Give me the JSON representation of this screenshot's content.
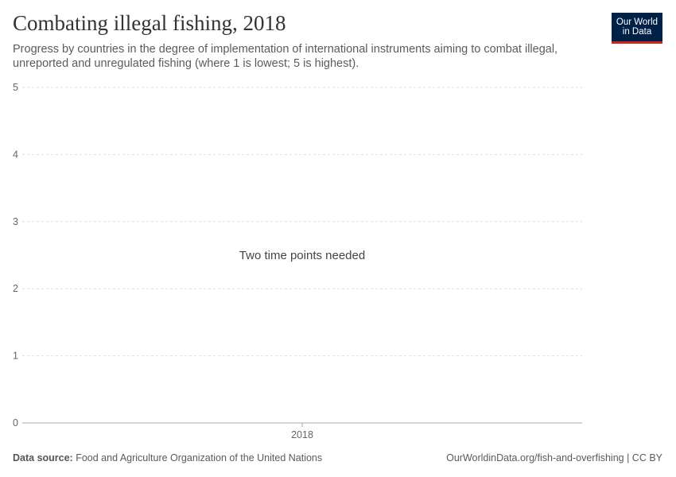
{
  "header": {
    "title": "Combating illegal fishing, 2018",
    "subtitle": "Progress by countries in the degree of implementation of international instruments aiming to combat illegal, unreported and unregulated fishing (where 1 is lowest; 5 is highest).",
    "logo": "Our World in Data",
    "logo_line1": "Our World",
    "logo_line2": "in Data"
  },
  "chart_data": {
    "type": "line",
    "title": "Combating illegal fishing, 2018",
    "ylim": [
      0,
      5
    ],
    "yticks": [
      "0",
      "1",
      "2",
      "3",
      "4",
      "5"
    ],
    "xticks": [
      "2018"
    ],
    "grid": true,
    "message": "Two time points needed",
    "series": []
  },
  "footer": {
    "source_label": "Data source:",
    "source": "Food and Agriculture Organization of the United Nations",
    "url": "OurWorldinData.org/fish-and-overfishing | CC BY"
  },
  "colors": {
    "logo_bg": "#002147",
    "logo_accent": "#ce261e"
  }
}
